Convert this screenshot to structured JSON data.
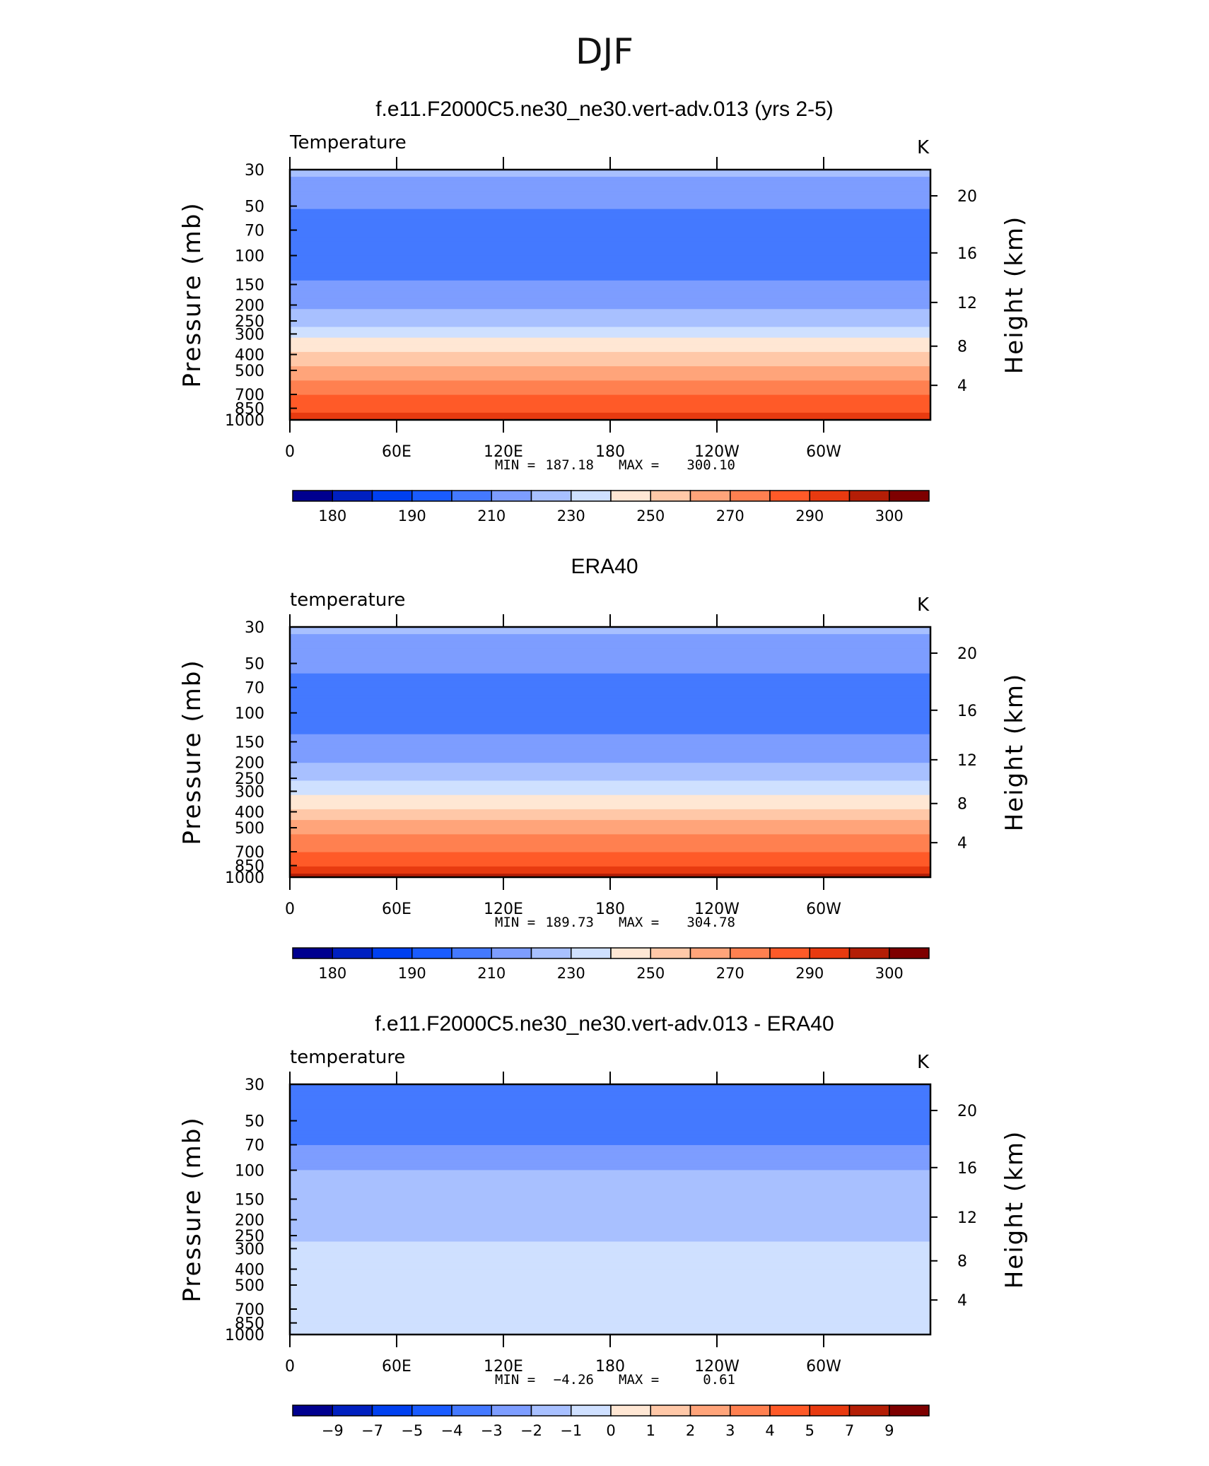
{
  "figure": {
    "title": "DJF",
    "colors": {
      "abs_scale": [
        "#00008f",
        "#0020c0",
        "#0040f0",
        "#1a5cff",
        "#4479ff",
        "#7d9dff",
        "#a8c0ff",
        "#cfe0ff",
        "#ffe7d4",
        "#ffc8a8",
        "#ffa47a",
        "#ff8050",
        "#ff5a28",
        "#e83a10",
        "#b41e06",
        "#7e0000"
      ],
      "diff_scale": [
        "#00008f",
        "#0020c0",
        "#0040f0",
        "#1a5cff",
        "#4479ff",
        "#7d9dff",
        "#a8c0ff",
        "#cfe0ff",
        "#ffe7d4",
        "#ffc8a8",
        "#ffa47a",
        "#ff8050",
        "#ff5a28",
        "#e83a10",
        "#b41e06",
        "#7e0000"
      ]
    }
  },
  "chart_data": [
    {
      "type": "heatmap",
      "title": "f.e11.F2000C5.ne30_ne30.vert-adv.013 (yrs 2-5)",
      "variable": "Temperature",
      "units": "K",
      "ylabel": "Pressure (mb)",
      "y2label": "Height (km)",
      "x_ticks": [
        "0",
        "60E",
        "120E",
        "180",
        "120W",
        "60W"
      ],
      "x_range": [
        0,
        360
      ],
      "y_ticks": [
        "30",
        "50",
        "70",
        "100",
        "150",
        "200",
        "250",
        "300",
        "400",
        "500",
        "700",
        "850",
        "1000"
      ],
      "y_range": [
        1000,
        30
      ],
      "y_scale": "log",
      "y2_ticks": [
        "20",
        "16",
        "12",
        "8",
        "4"
      ],
      "min_label": "MIN =",
      "min": "187.18",
      "max_label": "MAX =",
      "max": "300.10",
      "colorbar_labels": [
        "180",
        "190",
        "210",
        "230",
        "250",
        "270",
        "290",
        "300"
      ],
      "profile_levels": [
        30,
        50,
        70,
        100,
        150,
        200,
        250,
        300,
        400,
        500,
        700,
        850,
        1000
      ],
      "profile_values": [
        222,
        211,
        203,
        200,
        211,
        218,
        226,
        236,
        252,
        264,
        280,
        288,
        295
      ]
    },
    {
      "type": "heatmap",
      "title": "ERA40",
      "variable": "temperature",
      "units": "K",
      "ylabel": "Pressure (mb)",
      "y2label": "Height (km)",
      "x_ticks": [
        "0",
        "60E",
        "120E",
        "180",
        "120W",
        "60W"
      ],
      "x_range": [
        0,
        360
      ],
      "y_ticks": [
        "30",
        "50",
        "70",
        "100",
        "150",
        "200",
        "250",
        "300",
        "400",
        "500",
        "700",
        "850",
        "1000"
      ],
      "y_range": [
        1000,
        30
      ],
      "y_scale": "log",
      "y2_ticks": [
        "20",
        "16",
        "12",
        "8",
        "4"
      ],
      "min_label": "MIN =",
      "min": "189.73",
      "max_label": "MAX =",
      "max": "304.78",
      "colorbar_labels": [
        "180",
        "190",
        "210",
        "230",
        "250",
        "270",
        "290",
        "300"
      ],
      "profile_levels": [
        30,
        50,
        70,
        100,
        150,
        200,
        250,
        300,
        400,
        500,
        700,
        850,
        1000
      ],
      "profile_values": [
        222,
        213,
        205,
        204,
        212,
        219,
        227,
        238,
        253,
        265,
        280,
        289,
        297
      ]
    },
    {
      "type": "heatmap",
      "title": "f.e11.F2000C5.ne30_ne30.vert-adv.013 - ERA40",
      "variable": "temperature",
      "units": "K",
      "ylabel": "Pressure (mb)",
      "y2label": "Height (km)",
      "x_ticks": [
        "0",
        "60E",
        "120E",
        "180",
        "120W",
        "60W"
      ],
      "x_range": [
        0,
        360
      ],
      "y_ticks": [
        "30",
        "50",
        "70",
        "100",
        "150",
        "200",
        "250",
        "300",
        "400",
        "500",
        "700",
        "850",
        "1000"
      ],
      "y_range": [
        1000,
        30
      ],
      "y_scale": "log",
      "y2_ticks": [
        "20",
        "16",
        "12",
        "8",
        "4"
      ],
      "min_label": "MIN =",
      "min": "−4.26",
      "max_label": "MAX =",
      "max": "0.61",
      "colorbar_labels": [
        "−9",
        "−7",
        "−5",
        "−4",
        "−3",
        "−2",
        "−1",
        "0",
        "1",
        "2",
        "3",
        "4",
        "5",
        "7",
        "9"
      ],
      "profile_levels": [
        30,
        50,
        70,
        100,
        150,
        200,
        250,
        300,
        400,
        500,
        700,
        850,
        1000
      ],
      "profile_values": [
        -3.5,
        -3.2,
        -3.0,
        -2.0,
        -1.5,
        -2.0,
        -1.5,
        -0.5,
        -0.5,
        -0.5,
        -0.5,
        -0.8,
        -1.0
      ]
    }
  ]
}
